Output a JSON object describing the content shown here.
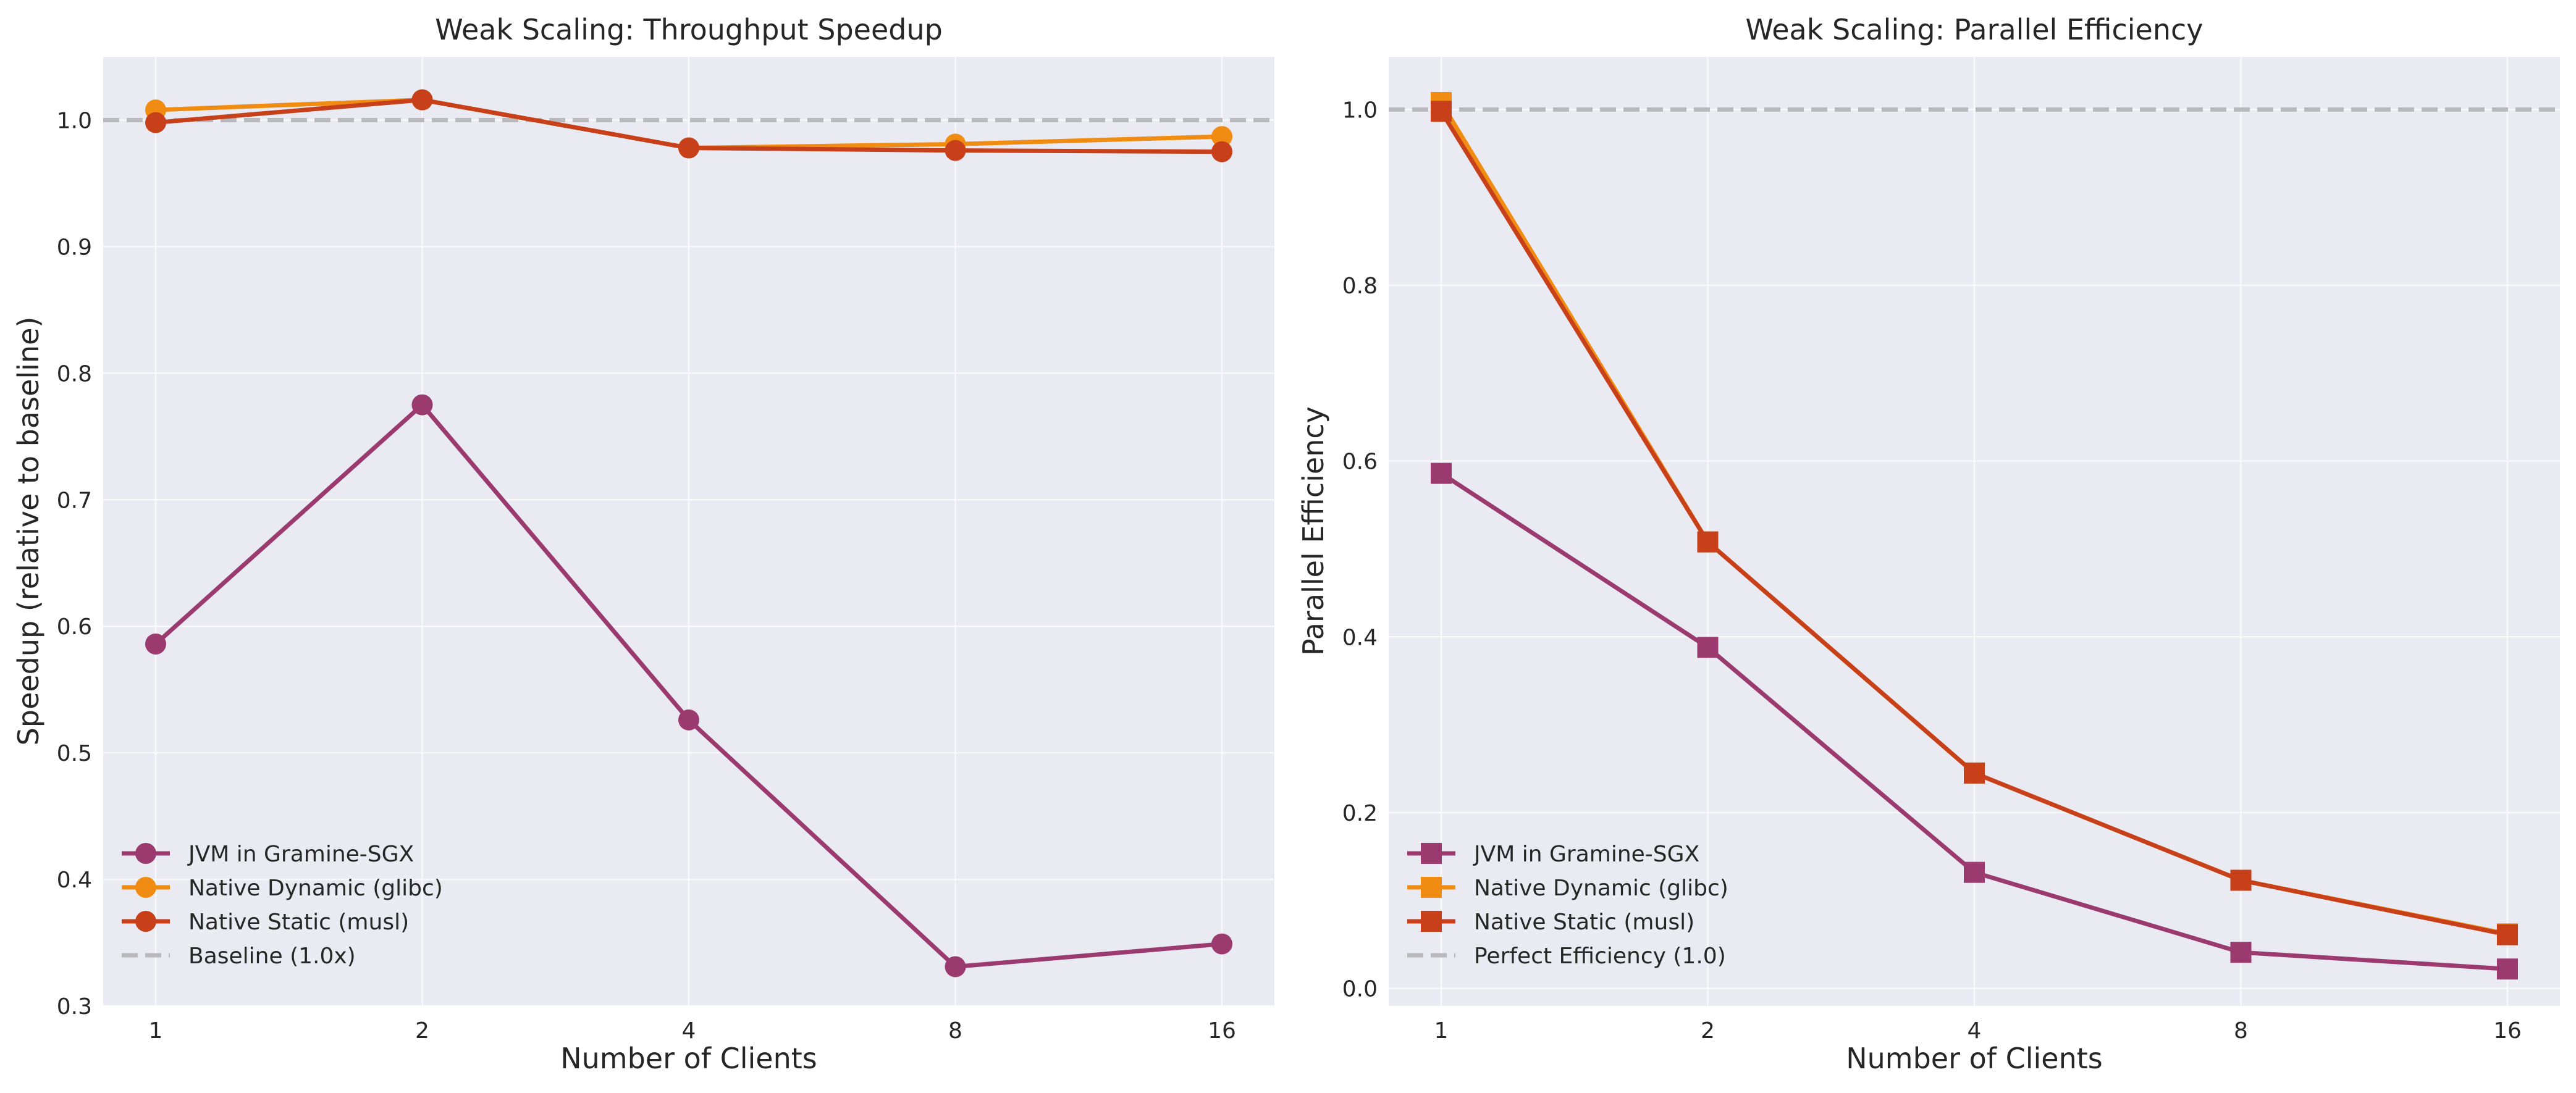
{
  "chart_data": [
    {
      "type": "line",
      "title": "Weak Scaling: Throughput Speedup",
      "xlabel": "Number of Clients",
      "ylabel": "Speedup (relative to baseline)",
      "categories": [
        "1",
        "2",
        "4",
        "8",
        "16"
      ],
      "ylim": [
        0.3,
        1.05
      ],
      "yticks": [
        "0.3",
        "0.4",
        "0.5",
        "0.6",
        "0.7",
        "0.8",
        "0.9",
        "1.0"
      ],
      "grid": true,
      "marker": "circle",
      "legend_position": "lower-left",
      "series": [
        {
          "name": "JVM in Gramine-SGX",
          "color": "#9b3a6e",
          "values": [
            0.586,
            0.775,
            0.526,
            0.331,
            0.349
          ]
        },
        {
          "name": "Native Dynamic (glibc)",
          "color": "#f08c12",
          "values": [
            1.008,
            1.016,
            0.978,
            0.981,
            0.987
          ]
        },
        {
          "name": "Native Static (musl)",
          "color": "#c7401a",
          "values": [
            0.998,
            1.016,
            0.978,
            0.976,
            0.975
          ]
        }
      ],
      "reference": {
        "name": "Baseline (1.0x)",
        "value": 1.0,
        "color": "#b9b9bd"
      }
    },
    {
      "type": "line",
      "title": "Weak Scaling: Parallel Efficiency",
      "xlabel": "Number of Clients",
      "ylabel": "Parallel Efficiency",
      "categories": [
        "1",
        "2",
        "4",
        "8",
        "16"
      ],
      "ylim": [
        -0.02,
        1.06
      ],
      "yticks": [
        "0.0",
        "0.2",
        "0.4",
        "0.6",
        "0.8",
        "1.0"
      ],
      "grid": true,
      "marker": "square",
      "legend_position": "lower-left",
      "series": [
        {
          "name": "JVM in Gramine-SGX",
          "color": "#9b3a6e",
          "values": [
            0.586,
            0.388,
            0.132,
            0.041,
            0.022
          ]
        },
        {
          "name": "Native Dynamic (glibc)",
          "color": "#f08c12",
          "values": [
            1.008,
            0.508,
            0.245,
            0.123,
            0.062
          ]
        },
        {
          "name": "Native Static (musl)",
          "color": "#c7401a",
          "values": [
            0.998,
            0.508,
            0.245,
            0.123,
            0.061
          ]
        }
      ],
      "reference": {
        "name": "Perfect Efficiency (1.0)",
        "value": 1.0,
        "color": "#b9b9bd"
      }
    }
  ]
}
